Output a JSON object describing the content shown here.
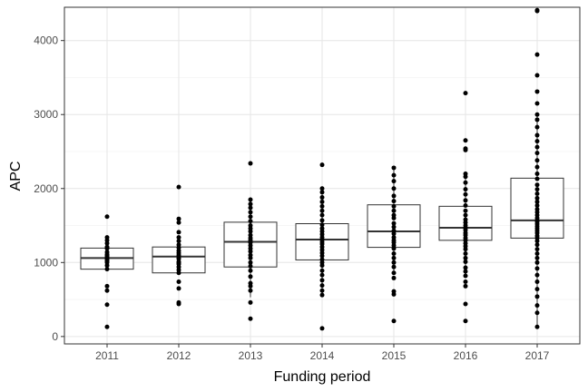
{
  "chart_data": {
    "type": "boxplot",
    "xlabel": "Funding period",
    "ylabel": "APC",
    "ylim": [
      -100,
      4450
    ],
    "y_ticks": [
      0,
      1000,
      2000,
      3000,
      4000
    ],
    "y_minor_ticks": [
      500,
      1500,
      2500,
      3500
    ],
    "grid": true,
    "categories": [
      "2011",
      "2012",
      "2013",
      "2014",
      "2015",
      "2016",
      "2017"
    ],
    "boxes": [
      {
        "category": "2011",
        "q1": 910,
        "median": 1060,
        "q3": 1195,
        "whisker_low": 910,
        "whisker_high": 1195
      },
      {
        "category": "2012",
        "q1": 860,
        "median": 1080,
        "q3": 1210,
        "whisker_low": 860,
        "whisker_high": 1210
      },
      {
        "category": "2013",
        "q1": 940,
        "median": 1280,
        "q3": 1545,
        "whisker_low": 530,
        "whisker_high": 1860
      },
      {
        "category": "2014",
        "q1": 1035,
        "median": 1310,
        "q3": 1525,
        "whisker_low": 590,
        "whisker_high": 2000
      },
      {
        "category": "2015",
        "q1": 1205,
        "median": 1420,
        "q3": 1780,
        "whisker_low": 860,
        "whisker_high": 2280
      },
      {
        "category": "2016",
        "q1": 1300,
        "median": 1470,
        "q3": 1760,
        "whisker_low": 880,
        "whisker_high": 2200
      },
      {
        "category": "2017",
        "q1": 1330,
        "median": 1570,
        "q3": 2140,
        "whisker_low": 130,
        "whisker_high": 3000
      }
    ],
    "points": [
      {
        "category": "2011",
        "values": [
          130,
          430,
          620,
          680,
          910,
          960,
          1000,
          1020,
          1040,
          1060,
          1080,
          1100,
          1110,
          1140,
          1190,
          1210,
          1260,
          1300,
          1340,
          1620
        ]
      },
      {
        "category": "2012",
        "values": [
          440,
          460,
          650,
          740,
          860,
          900,
          940,
          980,
          1000,
          1010,
          1050,
          1070,
          1100,
          1130,
          1160,
          1200,
          1240,
          1290,
          1340,
          1410,
          1540,
          1590,
          2020
        ]
      },
      {
        "category": "2013",
        "values": [
          240,
          460,
          620,
          680,
          720,
          810,
          890,
          950,
          1000,
          1060,
          1100,
          1150,
          1190,
          1230,
          1270,
          1300,
          1330,
          1370,
          1420,
          1460,
          1500,
          1560,
          1620,
          1680,
          1740,
          1790,
          1850,
          2340
        ]
      },
      {
        "category": "2014",
        "values": [
          110,
          560,
          620,
          690,
          760,
          830,
          890,
          960,
          1000,
          1040,
          1090,
          1130,
          1170,
          1210,
          1250,
          1280,
          1310,
          1340,
          1380,
          1420,
          1460,
          1510,
          1570,
          1640,
          1700,
          1760,
          1820,
          1880,
          1950,
          2000,
          2320
        ]
      },
      {
        "category": "2015",
        "values": [
          210,
          570,
          610,
          790,
          860,
          940,
          1000,
          1060,
          1120,
          1190,
          1230,
          1270,
          1300,
          1340,
          1390,
          1430,
          1480,
          1530,
          1600,
          1640,
          1700,
          1760,
          1830,
          1900,
          2000,
          2100,
          2180,
          2280
        ]
      },
      {
        "category": "2016",
        "values": [
          210,
          440,
          680,
          740,
          820,
          880,
          930,
          1010,
          1060,
          1120,
          1180,
          1220,
          1260,
          1300,
          1330,
          1370,
          1400,
          1440,
          1470,
          1500,
          1540,
          1580,
          1640,
          1700,
          1770,
          1840,
          1920,
          1990,
          2080,
          2160,
          2200,
          2520,
          2540,
          2650,
          3290
        ]
      },
      {
        "category": "2017",
        "values": [
          130,
          320,
          420,
          540,
          640,
          740,
          830,
          920,
          1000,
          1060,
          1120,
          1180,
          1240,
          1290,
          1330,
          1360,
          1400,
          1430,
          1460,
          1490,
          1520,
          1550,
          1570,
          1600,
          1640,
          1680,
          1720,
          1770,
          1820,
          1870,
          1930,
          1990,
          2050,
          2130,
          2200,
          2290,
          2380,
          2480,
          2560,
          2640,
          2720,
          2830,
          2930,
          3000,
          3150,
          3310,
          3530,
          3810,
          4400,
          4410
        ]
      }
    ]
  }
}
